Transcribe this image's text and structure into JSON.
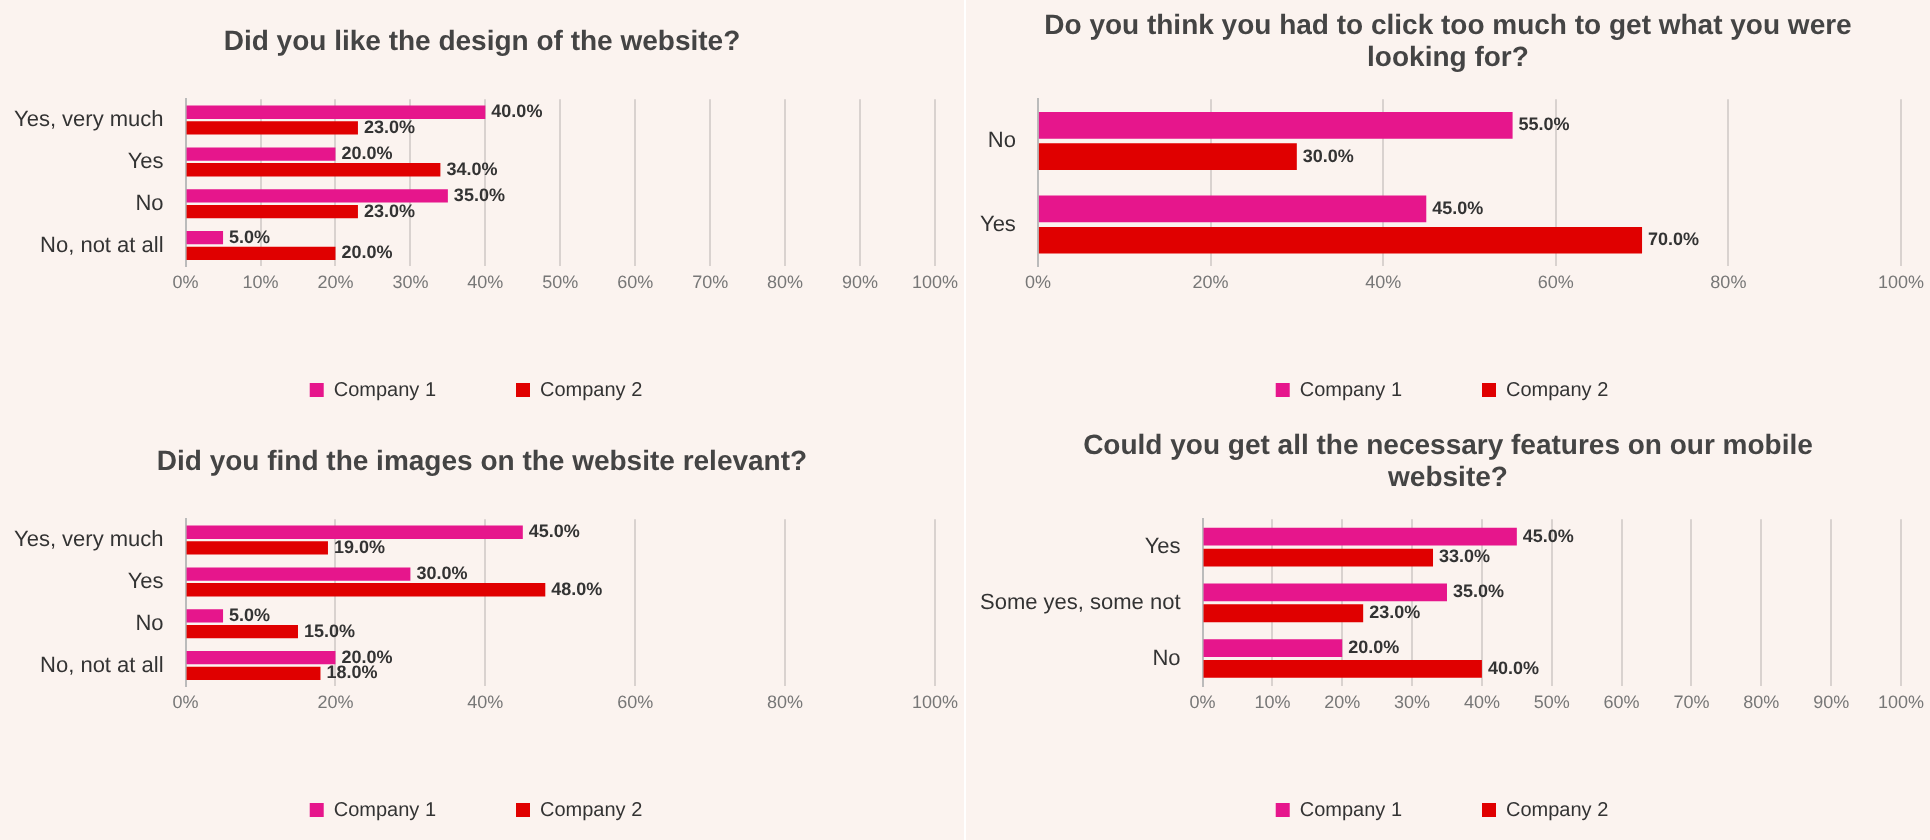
{
  "chart_data": [
    {
      "type": "bar",
      "orientation": "horizontal",
      "title": "Did you like the design of the website?",
      "categories": [
        "Yes, very much",
        "Yes",
        "No",
        "No, not at all"
      ],
      "series": [
        {
          "name": "Company 1",
          "color": "#e6168c",
          "values": [
            40,
            20,
            35,
            5
          ],
          "value_labels": [
            "40.0%",
            "20.0%",
            "35.0%",
            "5.0%"
          ]
        },
        {
          "name": "Company 2",
          "color": "#e00000",
          "values": [
            23,
            34,
            23,
            20
          ],
          "value_labels": [
            "23.0%",
            "34.0%",
            "23.0%",
            "20.0%"
          ]
        }
      ],
      "xlim": [
        0,
        100
      ],
      "xticks": [
        {
          "value": 0,
          "label": "0%"
        },
        {
          "value": 10,
          "label": "10%"
        },
        {
          "value": 20,
          "label": "20%"
        },
        {
          "value": 30,
          "label": "30%"
        },
        {
          "value": 40,
          "label": "40%"
        },
        {
          "value": 50,
          "label": "50%"
        },
        {
          "value": 60,
          "label": "60%"
        },
        {
          "value": 70,
          "label": "70%"
        },
        {
          "value": 80,
          "label": "80%"
        },
        {
          "value": 90,
          "label": "90%"
        },
        {
          "value": 100,
          "label": "100%"
        }
      ],
      "grid": "x",
      "legend": "bottom"
    },
    {
      "type": "bar",
      "orientation": "horizontal",
      "title": "Do you think you had to click too much to get what you were looking for?",
      "categories": [
        "No",
        "Yes"
      ],
      "series": [
        {
          "name": "Company 1",
          "color": "#e6168c",
          "values": [
            55,
            45
          ],
          "value_labels": [
            "55.0%",
            "45.0%"
          ]
        },
        {
          "name": "Company 2",
          "color": "#e00000",
          "values": [
            30,
            70
          ],
          "value_labels": [
            "30.0%",
            "70.0%"
          ]
        }
      ],
      "xlim": [
        0,
        100
      ],
      "xticks": [
        {
          "value": 0,
          "label": "0%"
        },
        {
          "value": 20,
          "label": "20%"
        },
        {
          "value": 40,
          "label": "40%"
        },
        {
          "value": 60,
          "label": "60%"
        },
        {
          "value": 80,
          "label": "80%"
        },
        {
          "value": 100,
          "label": "100%"
        }
      ],
      "grid": "x",
      "legend": "bottom"
    },
    {
      "type": "bar",
      "orientation": "horizontal",
      "title": "Did you find the images on the website relevant?",
      "categories": [
        "Yes, very much",
        "Yes",
        "No",
        "No, not at all"
      ],
      "series": [
        {
          "name": "Company 1",
          "color": "#e6168c",
          "values": [
            45,
            30,
            5,
            20
          ],
          "value_labels": [
            "45.0%",
            "30.0%",
            "5.0%",
            "20.0%"
          ]
        },
        {
          "name": "Company 2",
          "color": "#e00000",
          "values": [
            19,
            48,
            15,
            18
          ],
          "value_labels": [
            "19.0%",
            "48.0%",
            "15.0%",
            "18.0%"
          ]
        }
      ],
      "xlim": [
        0,
        100
      ],
      "xticks": [
        {
          "value": 0,
          "label": "0%"
        },
        {
          "value": 20,
          "label": "20%"
        },
        {
          "value": 40,
          "label": "40%"
        },
        {
          "value": 60,
          "label": "60%"
        },
        {
          "value": 80,
          "label": "80%"
        },
        {
          "value": 100,
          "label": "100%"
        }
      ],
      "grid": "x",
      "legend": "bottom"
    },
    {
      "type": "bar",
      "orientation": "horizontal",
      "title": "Could you get all the necessary features on our mobile website?",
      "categories": [
        "Yes",
        "Some yes, some not",
        "No"
      ],
      "series": [
        {
          "name": "Company 1",
          "color": "#e6168c",
          "values": [
            45,
            35,
            20
          ],
          "value_labels": [
            "45.0%",
            "35.0%",
            "20.0%"
          ]
        },
        {
          "name": "Company 2",
          "color": "#e00000",
          "values": [
            33,
            23,
            40
          ],
          "value_labels": [
            "33.0%",
            "23.0%",
            "40.0%"
          ]
        }
      ],
      "xlim": [
        0,
        100
      ],
      "xticks": [
        {
          "value": 0,
          "label": "0%"
        },
        {
          "value": 10,
          "label": "10%"
        },
        {
          "value": 20,
          "label": "20%"
        },
        {
          "value": 30,
          "label": "30%"
        },
        {
          "value": 40,
          "label": "40%"
        },
        {
          "value": 50,
          "label": "50%"
        },
        {
          "value": 60,
          "label": "60%"
        },
        {
          "value": 70,
          "label": "70%"
        },
        {
          "value": 80,
          "label": "80%"
        },
        {
          "value": 90,
          "label": "90%"
        },
        {
          "value": 100,
          "label": "100%"
        }
      ],
      "grid": "x",
      "legend": "bottom"
    }
  ]
}
